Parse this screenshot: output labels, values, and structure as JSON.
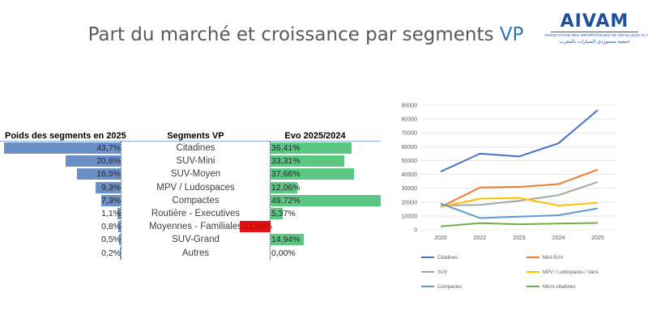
{
  "title": {
    "main": "Part du marché et croissance par segments",
    "accent": "VP"
  },
  "logo": {
    "name": "AIVAM",
    "tagline_fr": "ASSOCIATION DES IMPORTATEURS DE VÉHICULES AU MAROC",
    "tagline_ar": "جمعية مستوردي السيارات بالمغرب"
  },
  "table": {
    "headers": {
      "weight": "Poids des segments en 2025",
      "segment": "Segments VP",
      "evo": "Evo 2025/2024"
    },
    "colors": {
      "weight_bar": "#6d8fc8",
      "evo_positive": "#5cc683",
      "evo_negative": "#e01414"
    },
    "rows": [
      {
        "segment": "Citadines",
        "weight": 43.7,
        "weight_label": "43,7%",
        "evo": 36.41,
        "evo_label": "36,41%"
      },
      {
        "segment": "SUV-Mini",
        "weight": 20.6,
        "weight_label": "20,6%",
        "evo": 33.31,
        "evo_label": "33,31%"
      },
      {
        "segment": "SUV-Moyen",
        "weight": 16.5,
        "weight_label": "16,5%",
        "evo": 37.66,
        "evo_label": "37,66%"
      },
      {
        "segment": "MPV / Ludospaces",
        "weight": 9.3,
        "weight_label": "9,3%",
        "evo": 12.06,
        "evo_label": "12,06%"
      },
      {
        "segment": "Compactes",
        "weight": 7.3,
        "weight_label": "7,3%",
        "evo": 49.72,
        "evo_label": "49,72%"
      },
      {
        "segment": "Routière - Executives",
        "weight": 1.1,
        "weight_label": "1,1%",
        "evo": 5.37,
        "evo_label": "5,37%"
      },
      {
        "segment": "Moyennes - Familiales",
        "weight": 0.8,
        "weight_label": "0,8%",
        "evo": -13.86,
        "evo_label": "-13,86%"
      },
      {
        "segment": "SUV-Grand",
        "weight": 0.5,
        "weight_label": "0,5%",
        "evo": 14.94,
        "evo_label": "14,94%"
      },
      {
        "segment": "Autres",
        "weight": 0.2,
        "weight_label": "0,2%",
        "evo": 0.0,
        "evo_label": "0,00%"
      }
    ]
  },
  "chart_data": {
    "type": "line",
    "title": "",
    "xlabel": "",
    "ylabel": "",
    "x": [
      "2020",
      "2022",
      "2023",
      "2024",
      "2025"
    ],
    "ylim": [
      0,
      90000
    ],
    "yticks": [
      "0",
      "10000",
      "20000",
      "30000",
      "40000",
      "50000",
      "60000",
      "70000",
      "80000",
      "90000"
    ],
    "grid": "horizontal",
    "legend": "bottom",
    "series": [
      {
        "name": "Citadines",
        "color": "#4472c4",
        "values": [
          42000,
          55000,
          53000,
          62500,
          86500
        ]
      },
      {
        "name": "Mini-SUV",
        "color": "#ed7d31",
        "values": [
          16500,
          30500,
          31000,
          33000,
          43500
        ]
      },
      {
        "name": "SUV",
        "color": "#a5a5a5",
        "values": [
          17500,
          18000,
          21000,
          25000,
          34500
        ]
      },
      {
        "name": "MPV / Ludospaces / Vans",
        "color": "#ffc000",
        "values": [
          16500,
          22500,
          23000,
          17500,
          19500
        ]
      },
      {
        "name": "Compactes",
        "color": "#5b9bd5",
        "values": [
          19000,
          8500,
          9500,
          10500,
          15500
        ]
      },
      {
        "name": "Micro-citadines",
        "color": "#70ad47",
        "values": [
          2500,
          4800,
          4000,
          4500,
          5000
        ]
      }
    ]
  }
}
